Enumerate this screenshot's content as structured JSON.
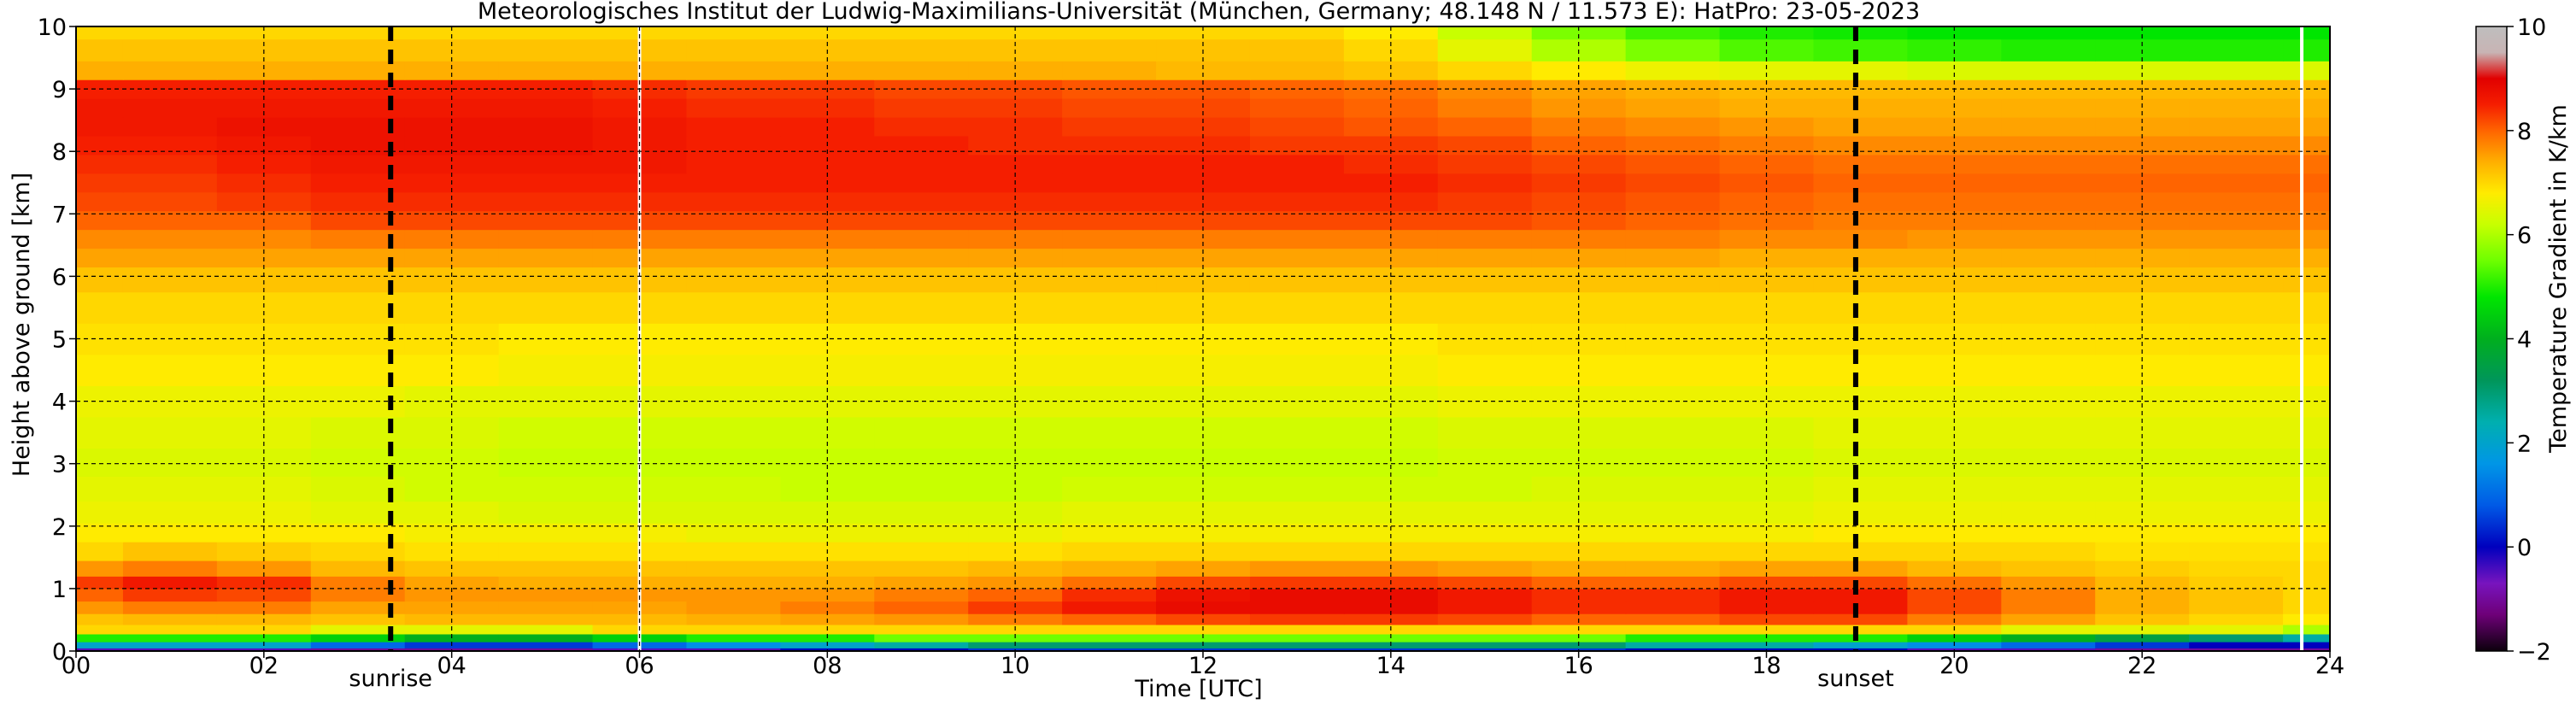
{
  "chart_data": {
    "type": "heatmap",
    "title": "Meteorologisches Institut der Ludwig-Maximilians-Universität (München, Germany; 48.148 N / 11.573 E):    HatPro: 23-05-2023",
    "xlabel": "Time [UTC]",
    "ylabel": "Height above ground [km]",
    "colorbar_label": "Temperature Gradient in K/km",
    "xlim": [
      0,
      24
    ],
    "ylim": [
      0,
      10
    ],
    "clim": [
      -2,
      10
    ],
    "x_ticks": [
      0,
      2,
      4,
      6,
      8,
      10,
      12,
      14,
      16,
      18,
      20,
      22,
      24
    ],
    "x_tick_labels": [
      "00",
      "02",
      "04",
      "06",
      "08",
      "10",
      "12",
      "14",
      "16",
      "18",
      "20",
      "22",
      "24"
    ],
    "y_ticks": [
      0,
      1,
      2,
      3,
      4,
      5,
      6,
      7,
      8,
      9,
      10
    ],
    "y_tick_labels": [
      "0",
      "1",
      "2",
      "3",
      "4",
      "5",
      "6",
      "7",
      "8",
      "9",
      "10"
    ],
    "colorbar_ticks": [
      -2,
      0,
      2,
      4,
      6,
      8,
      10
    ],
    "colorbar_tick_labels": [
      "−2",
      "0",
      "2",
      "4",
      "6",
      "8",
      "10"
    ],
    "grid": true,
    "events": [
      {
        "label": "sunrise",
        "time": 3.35
      },
      {
        "label": "sunset",
        "time": 18.95
      }
    ],
    "data_gaps": [
      6.0,
      23.7
    ],
    "time_columns": [
      0,
      1,
      2,
      3,
      4,
      5,
      6,
      7,
      8,
      9,
      10,
      11,
      12,
      13,
      14,
      15,
      16,
      17,
      18,
      19,
      20,
      21,
      22,
      23,
      24
    ],
    "height_levels_km": [
      0.0,
      0.1,
      0.2,
      0.35,
      0.5,
      0.7,
      0.9,
      1.1,
      1.3,
      1.6,
      1.9,
      2.2,
      2.6,
      3.0,
      3.5,
      4.0,
      4.5,
      5.0,
      5.5,
      6.0,
      6.3,
      6.6,
      6.9,
      7.2,
      7.5,
      7.8,
      8.1,
      8.4,
      8.7,
      9.0,
      9.3,
      9.6,
      10.0
    ],
    "values": [
      [
        -0.5,
        -0.5,
        -0.5,
        -1.0,
        -1.0,
        -1.0,
        -0.5,
        -0.5,
        0.0,
        0.0,
        0.5,
        0.5,
        0.5,
        0.5,
        0.5,
        0.5,
        0.5,
        0.0,
        0.0,
        0.0,
        -0.5,
        -0.5,
        -1.0,
        -1.0,
        -1.0
      ],
      [
        2.0,
        2.0,
        2.0,
        1.0,
        0.5,
        0.5,
        1.0,
        1.5,
        2.0,
        2.5,
        3.0,
        3.0,
        3.0,
        3.0,
        3.0,
        3.0,
        3.0,
        2.5,
        2.5,
        2.0,
        1.5,
        1.0,
        0.5,
        0.0,
        0.0
      ],
      [
        5.0,
        5.0,
        5.0,
        4.5,
        4.0,
        4.0,
        4.5,
        5.0,
        5.0,
        5.5,
        5.5,
        5.5,
        5.5,
        5.5,
        5.5,
        5.5,
        5.5,
        5.0,
        5.0,
        5.0,
        4.5,
        4.0,
        3.5,
        3.0,
        2.5
      ],
      [
        7.0,
        7.0,
        7.0,
        6.5,
        6.5,
        6.5,
        7.0,
        7.0,
        7.0,
        7.0,
        7.0,
        7.0,
        7.0,
        7.0,
        7.0,
        7.0,
        7.0,
        7.0,
        7.0,
        7.0,
        7.0,
        6.5,
        6.5,
        6.5,
        6.0
      ],
      [
        7.2,
        7.3,
        7.3,
        7.2,
        7.3,
        7.3,
        7.3,
        7.4,
        7.5,
        7.6,
        7.8,
        8.0,
        8.2,
        8.3,
        8.3,
        8.2,
        8.0,
        8.0,
        8.2,
        8.2,
        7.8,
        7.5,
        7.2,
        7.0,
        6.8
      ],
      [
        7.6,
        7.8,
        7.8,
        7.5,
        7.5,
        7.5,
        7.5,
        7.6,
        7.8,
        8.0,
        8.3,
        8.6,
        8.8,
        8.8,
        8.8,
        8.6,
        8.4,
        8.4,
        8.6,
        8.6,
        8.2,
        7.8,
        7.4,
        7.2,
        7.0
      ],
      [
        8.0,
        8.3,
        8.2,
        7.8,
        7.6,
        7.6,
        7.6,
        7.6,
        7.6,
        7.8,
        8.0,
        8.4,
        8.7,
        8.8,
        8.8,
        8.6,
        8.4,
        8.4,
        8.6,
        8.6,
        8.2,
        7.8,
        7.4,
        7.2,
        7.0
      ],
      [
        8.3,
        8.6,
        8.4,
        7.8,
        7.5,
        7.4,
        7.4,
        7.4,
        7.4,
        7.5,
        7.6,
        7.9,
        8.2,
        8.3,
        8.3,
        8.2,
        8.0,
        8.0,
        8.2,
        8.2,
        7.9,
        7.6,
        7.3,
        7.1,
        7.0
      ],
      [
        7.6,
        7.8,
        7.6,
        7.3,
        7.2,
        7.2,
        7.2,
        7.2,
        7.2,
        7.2,
        7.3,
        7.4,
        7.5,
        7.6,
        7.6,
        7.5,
        7.4,
        7.4,
        7.5,
        7.5,
        7.3,
        7.2,
        7.1,
        7.0,
        7.0
      ],
      [
        7.0,
        7.2,
        7.1,
        7.0,
        6.9,
        6.9,
        6.9,
        6.9,
        6.9,
        6.9,
        6.9,
        7.0,
        7.0,
        7.0,
        7.0,
        7.0,
        7.0,
        7.0,
        7.0,
        7.0,
        7.0,
        7.0,
        6.9,
        6.9,
        6.9
      ],
      [
        6.8,
        6.8,
        6.8,
        6.8,
        6.7,
        6.7,
        6.7,
        6.6,
        6.6,
        6.6,
        6.6,
        6.7,
        6.7,
        6.7,
        6.7,
        6.7,
        6.7,
        6.7,
        6.7,
        6.8,
        6.8,
        6.8,
        6.8,
        6.8,
        6.8
      ],
      [
        6.6,
        6.6,
        6.6,
        6.5,
        6.5,
        6.4,
        6.4,
        6.4,
        6.4,
        6.4,
        6.4,
        6.5,
        6.5,
        6.5,
        6.5,
        6.5,
        6.5,
        6.5,
        6.5,
        6.6,
        6.6,
        6.6,
        6.6,
        6.6,
        6.6
      ],
      [
        6.5,
        6.5,
        6.5,
        6.4,
        6.3,
        6.3,
        6.3,
        6.3,
        6.2,
        6.2,
        6.2,
        6.3,
        6.3,
        6.3,
        6.3,
        6.3,
        6.4,
        6.4,
        6.4,
        6.5,
        6.5,
        6.5,
        6.5,
        6.5,
        6.5
      ],
      [
        6.4,
        6.4,
        6.4,
        6.3,
        6.3,
        6.2,
        6.2,
        6.2,
        6.2,
        6.2,
        6.2,
        6.2,
        6.2,
        6.2,
        6.2,
        6.3,
        6.3,
        6.3,
        6.3,
        6.4,
        6.4,
        6.4,
        6.4,
        6.4,
        6.4
      ],
      [
        6.5,
        6.5,
        6.5,
        6.4,
        6.4,
        6.3,
        6.3,
        6.3,
        6.3,
        6.3,
        6.3,
        6.3,
        6.3,
        6.3,
        6.3,
        6.4,
        6.4,
        6.4,
        6.4,
        6.5,
        6.5,
        6.5,
        6.5,
        6.5,
        6.5
      ],
      [
        6.6,
        6.6,
        6.6,
        6.6,
        6.5,
        6.5,
        6.5,
        6.5,
        6.5,
        6.5,
        6.5,
        6.5,
        6.5,
        6.5,
        6.5,
        6.6,
        6.6,
        6.6,
        6.6,
        6.6,
        6.6,
        6.6,
        6.6,
        6.6,
        6.6
      ],
      [
        6.8,
        6.8,
        6.8,
        6.8,
        6.8,
        6.7,
        6.7,
        6.7,
        6.7,
        6.7,
        6.7,
        6.7,
        6.7,
        6.7,
        6.7,
        6.8,
        6.8,
        6.8,
        6.8,
        6.8,
        6.8,
        6.8,
        6.8,
        6.8,
        6.8
      ],
      [
        6.9,
        6.9,
        6.9,
        6.9,
        6.9,
        6.8,
        6.8,
        6.8,
        6.8,
        6.8,
        6.8,
        6.8,
        6.8,
        6.8,
        6.8,
        6.9,
        6.9,
        6.9,
        6.9,
        6.9,
        6.9,
        6.9,
        6.9,
        6.9,
        6.9
      ],
      [
        7.0,
        7.0,
        7.0,
        7.0,
        7.0,
        7.0,
        7.0,
        7.0,
        7.0,
        7.0,
        7.0,
        7.0,
        7.0,
        7.0,
        7.0,
        7.0,
        7.0,
        7.0,
        7.0,
        7.0,
        7.0,
        7.0,
        7.0,
        7.0,
        7.0
      ],
      [
        7.2,
        7.2,
        7.2,
        7.2,
        7.2,
        7.2,
        7.2,
        7.2,
        7.2,
        7.2,
        7.2,
        7.2,
        7.2,
        7.2,
        7.2,
        7.2,
        7.2,
        7.2,
        7.2,
        7.2,
        7.2,
        7.2,
        7.2,
        7.2,
        7.2
      ],
      [
        7.5,
        7.5,
        7.5,
        7.5,
        7.5,
        7.5,
        7.5,
        7.5,
        7.5,
        7.5,
        7.5,
        7.5,
        7.5,
        7.5,
        7.5,
        7.5,
        7.5,
        7.5,
        7.4,
        7.4,
        7.4,
        7.4,
        7.4,
        7.4,
        7.4
      ],
      [
        7.7,
        7.7,
        7.7,
        7.8,
        7.8,
        7.8,
        7.8,
        7.8,
        7.8,
        7.8,
        7.8,
        7.8,
        7.8,
        7.8,
        7.8,
        7.8,
        7.8,
        7.8,
        7.7,
        7.7,
        7.6,
        7.6,
        7.6,
        7.6,
        7.6
      ],
      [
        8.0,
        8.0,
        8.0,
        8.2,
        8.2,
        8.2,
        8.2,
        8.2,
        8.2,
        8.2,
        8.2,
        8.2,
        8.2,
        8.2,
        8.2,
        8.2,
        8.1,
        8.0,
        7.9,
        7.8,
        7.8,
        7.8,
        7.8,
        7.8,
        7.8
      ],
      [
        8.2,
        8.2,
        8.3,
        8.4,
        8.4,
        8.4,
        8.4,
        8.4,
        8.4,
        8.4,
        8.4,
        8.4,
        8.4,
        8.4,
        8.4,
        8.3,
        8.2,
        8.1,
        8.0,
        7.9,
        7.9,
        7.9,
        7.9,
        7.9,
        7.9
      ],
      [
        8.3,
        8.3,
        8.4,
        8.5,
        8.5,
        8.5,
        8.5,
        8.5,
        8.5,
        8.5,
        8.5,
        8.5,
        8.5,
        8.5,
        8.5,
        8.4,
        8.3,
        8.2,
        8.1,
        8.0,
        8.0,
        8.0,
        8.0,
        8.0,
        8.0
      ],
      [
        8.4,
        8.4,
        8.5,
        8.6,
        8.6,
        8.6,
        8.6,
        8.5,
        8.5,
        8.5,
        8.5,
        8.5,
        8.5,
        8.5,
        8.4,
        8.3,
        8.2,
        8.1,
        8.0,
        7.9,
        7.9,
        7.9,
        7.9,
        7.9,
        7.9
      ],
      [
        8.5,
        8.5,
        8.6,
        8.7,
        8.7,
        8.7,
        8.6,
        8.5,
        8.5,
        8.5,
        8.4,
        8.4,
        8.4,
        8.3,
        8.3,
        8.2,
        8.0,
        7.9,
        7.8,
        7.7,
        7.7,
        7.7,
        7.7,
        7.7,
        7.7
      ],
      [
        8.6,
        8.6,
        8.7,
        8.7,
        8.7,
        8.7,
        8.6,
        8.5,
        8.5,
        8.4,
        8.4,
        8.3,
        8.3,
        8.2,
        8.1,
        8.0,
        7.8,
        7.7,
        7.6,
        7.5,
        7.5,
        7.5,
        7.5,
        7.5,
        7.5
      ],
      [
        8.6,
        8.6,
        8.6,
        8.6,
        8.6,
        8.6,
        8.5,
        8.4,
        8.4,
        8.3,
        8.3,
        8.2,
        8.2,
        8.1,
        8.0,
        7.8,
        7.6,
        7.5,
        7.4,
        7.4,
        7.4,
        7.4,
        7.4,
        7.4,
        7.4
      ],
      [
        8.5,
        8.5,
        8.5,
        8.5,
        8.5,
        8.5,
        8.4,
        8.3,
        8.3,
        8.2,
        8.2,
        8.1,
        8.1,
        8.0,
        7.9,
        7.7,
        7.5,
        7.4,
        7.3,
        7.3,
        7.3,
        7.3,
        7.3,
        7.3,
        7.3
      ],
      [
        7.4,
        7.4,
        7.4,
        7.4,
        7.4,
        7.4,
        7.4,
        7.4,
        7.4,
        7.4,
        7.4,
        7.4,
        7.3,
        7.3,
        7.2,
        7.0,
        6.8,
        6.6,
        6.5,
        6.5,
        6.4,
        6.4,
        6.4,
        6.4,
        6.4
      ],
      [
        7.2,
        7.2,
        7.2,
        7.2,
        7.2,
        7.2,
        7.2,
        7.2,
        7.2,
        7.2,
        7.2,
        7.2,
        7.2,
        7.2,
        7.0,
        6.5,
        6.0,
        5.6,
        5.3,
        5.2,
        5.1,
        5.0,
        5.0,
        5.0,
        5.0
      ],
      [
        7.0,
        7.0,
        7.0,
        7.0,
        7.0,
        7.0,
        7.0,
        7.0,
        7.0,
        7.0,
        7.0,
        7.0,
        7.0,
        7.0,
        6.8,
        6.2,
        5.6,
        5.2,
        5.0,
        4.9,
        4.8,
        4.8,
        4.8,
        4.8,
        4.8
      ]
    ]
  }
}
